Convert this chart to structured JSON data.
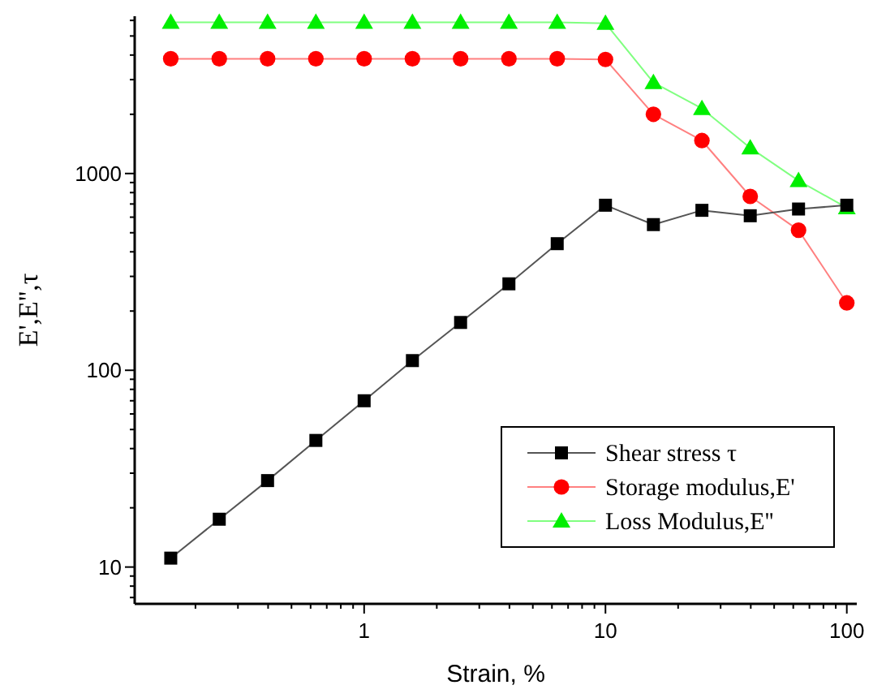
{
  "chart_data": {
    "type": "line",
    "xlabel": "Strain, %",
    "ylabel": "E',E'',τ",
    "log": "xy",
    "grid": false,
    "legend": "bottom right",
    "line_style": "solid",
    "x": [
      0.158,
      0.251,
      0.398,
      0.631,
      1,
      1.585,
      2.51,
      3.98,
      6.31,
      10,
      15.8,
      25.1,
      39.8,
      63.1,
      100
    ],
    "xlim": [
      0.112,
      110
    ],
    "ylim": [
      6.5,
      6300
    ],
    "xticks": [
      {
        "value": 0.2,
        "label": null
      },
      {
        "value": 0.3,
        "label": null
      },
      {
        "value": 0.4,
        "label": null
      },
      {
        "value": 0.5,
        "label": null
      },
      {
        "value": 0.6,
        "label": null
      },
      {
        "value": 0.7,
        "label": null
      },
      {
        "value": 0.8,
        "label": null
      },
      {
        "value": 0.9,
        "label": null
      },
      1,
      {
        "value": 2,
        "label": null
      },
      {
        "value": 3,
        "label": null
      },
      {
        "value": 4,
        "label": null
      },
      {
        "value": 5,
        "label": null
      },
      {
        "value": 6,
        "label": null
      },
      {
        "value": 7,
        "label": null
      },
      {
        "value": 8,
        "label": null
      },
      {
        "value": 9,
        "label": null
      },
      10,
      {
        "value": 20,
        "label": null
      },
      {
        "value": 30,
        "label": null
      },
      {
        "value": 40,
        "label": null
      },
      {
        "value": 50,
        "label": null
      },
      {
        "value": 60,
        "label": null
      },
      {
        "value": 70,
        "label": null
      },
      {
        "value": 80,
        "label": null
      },
      {
        "value": 90,
        "label": null
      },
      100
    ],
    "yticks": [
      {
        "value": 7,
        "label": null
      },
      {
        "value": 8,
        "label": null
      },
      {
        "value": 9,
        "label": null
      },
      10,
      {
        "value": 20,
        "label": null
      },
      {
        "value": 30,
        "label": null
      },
      {
        "value": 40,
        "label": null
      },
      {
        "value": 50,
        "label": null
      },
      {
        "value": 60,
        "label": null
      },
      {
        "value": 70,
        "label": null
      },
      {
        "value": 80,
        "label": null
      },
      {
        "value": 90,
        "label": null
      },
      100,
      {
        "value": 200,
        "label": null
      },
      {
        "value": 300,
        "label": null
      },
      {
        "value": 400,
        "label": null
      },
      {
        "value": 500,
        "label": null
      },
      {
        "value": 600,
        "label": null
      },
      {
        "value": 700,
        "label": null
      },
      {
        "value": 800,
        "label": null
      },
      {
        "value": 900,
        "label": null
      },
      1000,
      {
        "value": 2000,
        "label": null
      },
      {
        "value": 3000,
        "label": null
      },
      {
        "value": 4000,
        "label": null
      },
      {
        "value": 5000,
        "label": null
      },
      {
        "value": 6000,
        "label": null
      }
    ],
    "series": [
      {
        "name": "Shear stress τ",
        "color": "#000000",
        "marker": "square",
        "values": [
          11.1,
          17.5,
          27.5,
          44,
          70,
          112,
          175,
          275,
          440,
          690,
          550,
          650,
          610,
          660,
          690
        ]
      },
      {
        "name": "Storage modulus,E'",
        "color": "#ff0000",
        "marker": "circle",
        "values": [
          3830,
          3830,
          3830,
          3830,
          3830,
          3830,
          3830,
          3830,
          3830,
          3800,
          2000,
          1470,
          765,
          515,
          220
        ]
      },
      {
        "name": "Loss Modulus,E''",
        "color": "#00ee00",
        "marker": "triangle",
        "values": [
          5860,
          5860,
          5860,
          5860,
          5860,
          5860,
          5860,
          5860,
          5860,
          5800,
          2900,
          2140,
          1350,
          920,
          670
        ]
      }
    ]
  }
}
